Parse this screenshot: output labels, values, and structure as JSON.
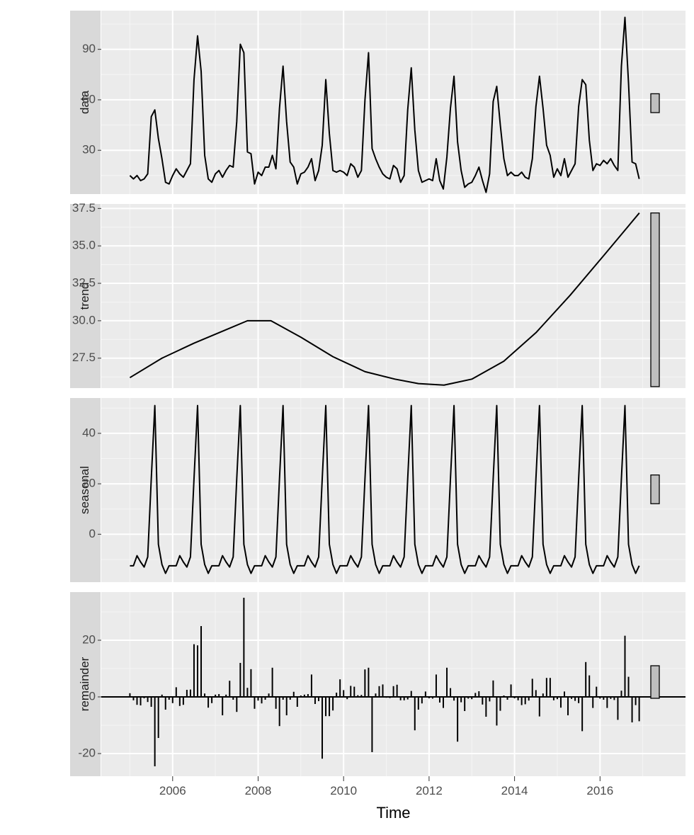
{
  "colors": {
    "panel_bg": "#ebebeb",
    "strip_bg": "#d9d9d9",
    "grid_major": "#ffffff",
    "grid_minor": "#f5f5f5",
    "line": "#000000",
    "range_bar_fill": "#bfbfbf",
    "tick_text": "#4d4d4d"
  },
  "chart_data": {
    "type": "line",
    "subtype": "stl-decomposition",
    "xlabel": "Time",
    "x_ticks": [
      2006,
      2008,
      2010,
      2012,
      2014,
      2016
    ],
    "x_tick_labels": [
      "2006",
      "2008",
      "2010",
      "2012",
      "2014",
      "2016"
    ],
    "xlim": [
      2004.33,
      2018.0
    ],
    "start": 2005.0,
    "frequency": 12,
    "range_bar_note": "grey bars at right show relative scale of each panel",
    "panels": [
      {
        "name": "data",
        "type": "line",
        "ylim": [
          4,
          113
        ],
        "y_ticks": [
          30,
          60,
          90
        ],
        "y_tick_labels": [
          "30",
          "60",
          "90"
        ],
        "range_bar": [
          52.4,
          63.6
        ],
        "values": [
          15,
          13,
          15,
          12,
          13,
          16,
          50,
          54,
          37,
          25,
          11,
          10,
          15,
          19,
          16,
          14,
          18,
          22,
          72,
          98,
          77,
          27,
          13,
          11,
          16,
          18,
          14,
          18,
          21,
          20,
          47,
          93,
          88,
          29,
          28,
          10,
          17,
          15,
          20,
          20,
          27,
          19,
          55,
          80,
          47,
          23,
          20,
          10,
          16,
          17,
          20,
          25,
          12,
          18,
          33,
          72,
          40,
          18,
          17,
          18,
          17,
          15,
          22,
          20,
          14,
          18,
          60,
          88,
          31,
          25,
          20,
          16,
          14,
          13,
          21,
          19,
          11,
          15,
          54,
          79,
          42,
          18,
          11,
          12,
          13,
          12,
          25,
          12,
          7,
          26,
          55,
          74,
          35,
          18,
          8,
          10,
          11,
          15,
          20,
          12,
          5,
          16,
          59,
          68,
          45,
          25,
          15,
          17,
          15,
          15,
          17,
          14,
          13,
          25,
          56,
          74,
          55,
          33,
          27,
          14,
          19,
          15,
          25,
          14,
          18,
          22,
          56,
          72,
          69,
          36,
          18,
          22,
          21,
          24,
          22,
          25,
          21,
          18,
          80,
          109,
          70,
          23,
          22,
          13
        ]
      },
      {
        "name": "trend",
        "type": "line",
        "ylim": [
          25.5,
          37.8
        ],
        "y_ticks": [
          27.5,
          30.0,
          32.5,
          35.0,
          37.5
        ],
        "y_tick_labels": [
          "27.5",
          "30.0",
          "32.5",
          "35.0",
          "37.5"
        ],
        "range_bar": [
          25.6,
          37.2
        ],
        "knots_x": [
          2005.0,
          2005.75,
          2006.5,
          2007.25,
          2007.75,
          2008.3,
          2009.0,
          2009.75,
          2010.5,
          2011.2,
          2011.75,
          2012.35,
          2013.0,
          2013.75,
          2014.5,
          2015.3,
          2016.1,
          2016.92
        ],
        "knots_y": [
          26.2,
          27.5,
          28.5,
          29.4,
          30.0,
          30.0,
          28.9,
          27.6,
          26.6,
          26.1,
          25.8,
          25.7,
          26.1,
          27.3,
          29.2,
          31.7,
          34.4,
          37.2
        ]
      },
      {
        "name": "seasonal",
        "type": "line",
        "ylim": [
          -19,
          54
        ],
        "y_ticks": [
          0,
          20,
          40
        ],
        "y_tick_labels": [
          "0",
          "20",
          "40"
        ],
        "range_bar": [
          12.1,
          23.5
        ],
        "seasonal_cycle": [
          -12.5,
          -12.5,
          -8.5,
          -11.0,
          -13.0,
          -9.0,
          22.0,
          51.0,
          -4.0,
          -12.0,
          -15.5,
          -12.5
        ],
        "periods": 12
      },
      {
        "name": "remainder",
        "type": "bar",
        "ylim": [
          -28,
          37
        ],
        "y_ticks": [
          -20,
          0,
          20
        ],
        "y_tick_labels": [
          "-20",
          "0",
          "20"
        ],
        "range_bar": [
          -0.5,
          11.0
        ],
        "values": [
          1.3,
          -1.2,
          -2.8,
          -3.0,
          -0.5,
          -1.8,
          -3.5,
          -24.5,
          -14.5,
          0.8,
          -4.5,
          -1.0,
          -2.2,
          3.4,
          -3.2,
          -2.8,
          2.5,
          2.6,
          18.6,
          18.2,
          25.0,
          1.2,
          -3.8,
          -2.2,
          0.8,
          1.0,
          -6.5,
          0.8,
          5.7,
          -1.0,
          -5.3,
          12.0,
          35.0,
          3.2,
          9.8,
          -4.2,
          -1.3,
          -2.3,
          -1.0,
          1.2,
          10.3,
          -4.2,
          -10.3,
          -1.0,
          -6.5,
          -1.0,
          1.8,
          -3.5,
          0.5,
          0.8,
          1.0,
          7.9,
          -2.5,
          -1.5,
          -21.8,
          -6.8,
          -6.8,
          -4.8,
          1.5,
          6.2,
          2.4,
          -0.8,
          3.9,
          3.6,
          0.6,
          0.7,
          9.7,
          10.3,
          -19.5,
          1.2,
          3.8,
          4.4,
          -0.3,
          -0.4,
          3.8,
          4.3,
          -1.2,
          -1.2,
          -0.9,
          2.1,
          -11.8,
          -4.5,
          -2.3,
          1.9,
          -0.5,
          -0.6,
          7.9,
          -2.0,
          -3.9,
          10.3,
          3.1,
          -1.3,
          -15.8,
          -1.9,
          -5.0,
          -0.6,
          -0.8,
          1.4,
          2.0,
          -2.7,
          -7.0,
          -1.6,
          5.8,
          -10.1,
          -4.9,
          0.5,
          -1.0,
          4.4,
          -0.5,
          -1.2,
          -2.9,
          -2.6,
          -1.3,
          6.4,
          2.4,
          -6.9,
          1.2,
          6.7,
          6.7,
          -1.2,
          -0.8,
          -3.8,
          1.9,
          -6.5,
          -0.7,
          -1.4,
          -2.2,
          -12.1,
          12.3,
          7.6,
          -3.9,
          3.6,
          -0.6,
          -1.0,
          -3.9,
          -0.7,
          -1.1,
          -8.1,
          2.2,
          21.6,
          7.1,
          -9.0,
          -2.9,
          -8.6
        ]
      }
    ]
  }
}
